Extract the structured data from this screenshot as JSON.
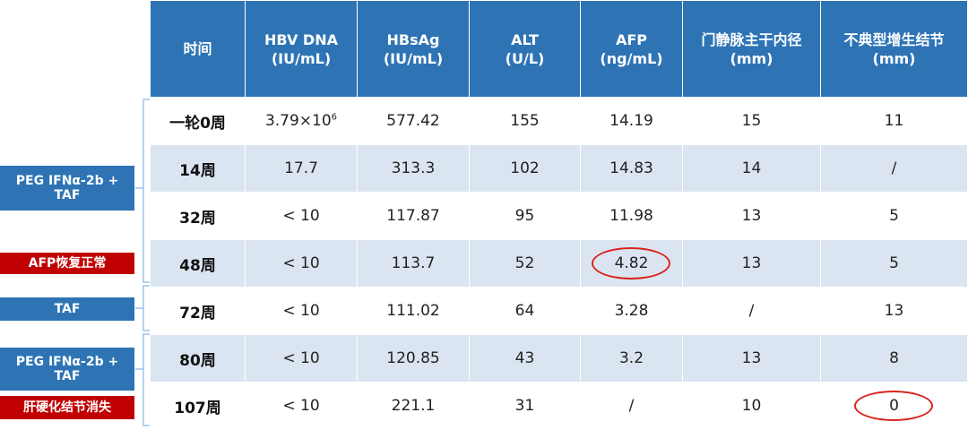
{
  "table": {
    "headers": [
      "时间",
      "HBV DNA\n(IU/mL)",
      "HBsAg\n(IU/mL)",
      "ALT\n(U/L)",
      "AFP\n(ng/mL)",
      "门静脉主干内径\n(mm)",
      "不典型增生结节\n(mm)"
    ],
    "rows": [
      {
        "time": "一轮0周",
        "hbv_base": "3.79×10",
        "hbv_exp": "6",
        "hbsag": "577.42",
        "alt": "155",
        "afp": "14.19",
        "portal": "15",
        "nodule": "11"
      },
      {
        "time": "14周",
        "hbv": "17.7",
        "hbsag": "313.3",
        "alt": "102",
        "afp": "14.83",
        "portal": "14",
        "nodule": "/"
      },
      {
        "time": "32周",
        "hbv": "< 10",
        "hbsag": "117.87",
        "alt": "95",
        "afp": "11.98",
        "portal": "13",
        "nodule": "5"
      },
      {
        "time": "48周",
        "hbv": "< 10",
        "hbsag": "113.7",
        "alt": "52",
        "afp": "4.82",
        "portal": "13",
        "nodule": "5"
      },
      {
        "time": "72周",
        "hbv": "< 10",
        "hbsag": "111.02",
        "alt": "64",
        "afp": "3.28",
        "portal": "/",
        "nodule": "13"
      },
      {
        "time": "80周",
        "hbv": "< 10",
        "hbsag": "120.85",
        "alt": "43",
        "afp": "3.2",
        "portal": "13",
        "nodule": "8"
      },
      {
        "time": "107周",
        "hbv": "< 10",
        "hbsag": "221.1",
        "alt": "31",
        "afp": "/",
        "portal": "10",
        "nodule": "0"
      }
    ]
  },
  "side_labels": {
    "treatment_1": "PEG IFNα-2b +\nTAF",
    "afp_normal": "AFP恢复正常",
    "treatment_2": "TAF",
    "treatment_3": "PEG IFNα-2b +\nTAF",
    "nodule_gone": "肝硬化结节消失"
  },
  "colors": {
    "header_blue": "#2e74b5",
    "stripe_blue": "#dbe5f1",
    "highlight_red": "#c00000",
    "circle_red": "#d9231d"
  }
}
